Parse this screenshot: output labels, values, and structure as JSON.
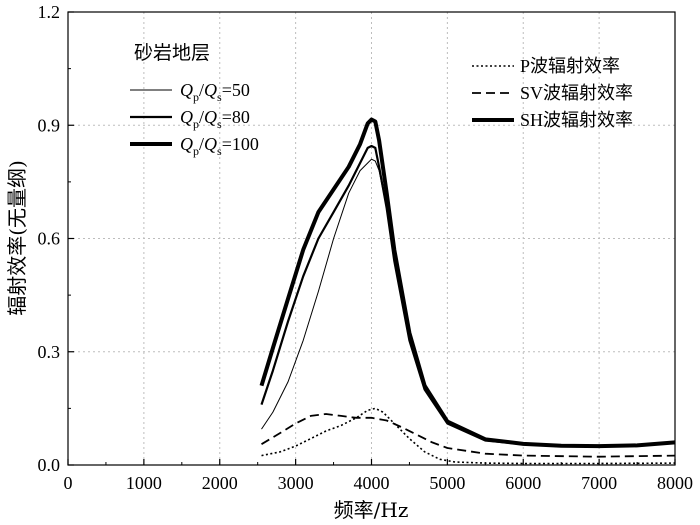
{
  "chart_data": {
    "type": "line",
    "xlabel": "频率/Hz",
    "ylabel": "辐射效率(无量纲)",
    "xlim": [
      0,
      8000
    ],
    "ylim": [
      0,
      1.2
    ],
    "xticks": [
      0,
      1000,
      2000,
      3000,
      4000,
      5000,
      6000,
      7000,
      8000
    ],
    "yticks": [
      0.0,
      0.3,
      0.6,
      0.9,
      1.2
    ],
    "xtick_labels": [
      "0",
      "1000",
      "2000",
      "3000",
      "4000",
      "5000",
      "6000",
      "7000",
      "8000"
    ],
    "ytick_labels": [
      "0.0",
      "0.3",
      "0.6",
      "0.9",
      "1.2"
    ],
    "grid": true,
    "legend_group_title": "砂岩地层",
    "legend_left": [
      {
        "pre": "Q",
        "sub1": "p",
        "mid": "/Q",
        "sub2": "s",
        "post": "=50",
        "width": 1
      },
      {
        "pre": "Q",
        "sub1": "p",
        "mid": "/Q",
        "sub2": "s",
        "post": "=80",
        "width": 2.2
      },
      {
        "pre": "Q",
        "sub1": "p",
        "mid": "/Q",
        "sub2": "s",
        "post": "=100",
        "width": 4
      }
    ],
    "legend_right": [
      {
        "label": "P波辐射效率",
        "style": "dotted"
      },
      {
        "label": "SV波辐射效率",
        "style": "dashed"
      },
      {
        "label": "SH波辐射效率",
        "style": "thick"
      }
    ],
    "series": [
      {
        "id": "sh-q50",
        "style": "solid",
        "width": 1,
        "x": [
          2550,
          2700,
          2900,
          3100,
          3300,
          3500,
          3700,
          3850,
          3950,
          4000,
          4050,
          4100,
          4200,
          4300,
          4500,
          4700,
          5000,
          5500,
          6000,
          6500,
          7000,
          7500,
          8000
        ],
        "y": [
          0.095,
          0.14,
          0.22,
          0.33,
          0.46,
          0.6,
          0.72,
          0.78,
          0.8,
          0.81,
          0.805,
          0.78,
          0.68,
          0.54,
          0.33,
          0.2,
          0.11,
          0.065,
          0.055,
          0.05,
          0.05,
          0.052,
          0.06
        ]
      },
      {
        "id": "sh-q80",
        "style": "solid",
        "width": 2.2,
        "x": [
          2550,
          2700,
          2900,
          3100,
          3300,
          3500,
          3700,
          3850,
          3950,
          4000,
          4050,
          4100,
          4200,
          4300,
          4500,
          4700,
          5000,
          5500,
          6000,
          6500,
          7000,
          7500,
          8000
        ],
        "y": [
          0.16,
          0.25,
          0.38,
          0.5,
          0.6,
          0.67,
          0.74,
          0.8,
          0.84,
          0.845,
          0.84,
          0.79,
          0.68,
          0.54,
          0.33,
          0.2,
          0.11,
          0.065,
          0.055,
          0.05,
          0.05,
          0.052,
          0.06
        ]
      },
      {
        "id": "sh-q100",
        "style": "thick",
        "width": 4,
        "x": [
          2550,
          2700,
          2900,
          3100,
          3300,
          3500,
          3700,
          3850,
          3950,
          4000,
          4050,
          4100,
          4200,
          4300,
          4500,
          4700,
          5000,
          5500,
          6000,
          6500,
          7000,
          7500,
          8000
        ],
        "y": [
          0.21,
          0.31,
          0.44,
          0.57,
          0.67,
          0.73,
          0.79,
          0.85,
          0.905,
          0.915,
          0.91,
          0.86,
          0.72,
          0.57,
          0.35,
          0.21,
          0.115,
          0.068,
          0.056,
          0.051,
          0.05,
          0.052,
          0.06
        ]
      },
      {
        "id": "p-wave",
        "style": "dotted",
        "width": 1.6,
        "x": [
          2550,
          2800,
          3000,
          3200,
          3400,
          3600,
          3800,
          3950,
          4050,
          4150,
          4300,
          4500,
          4700,
          4900,
          5100,
          5500,
          6000,
          7000,
          8000
        ],
        "y": [
          0.025,
          0.035,
          0.05,
          0.07,
          0.09,
          0.105,
          0.125,
          0.145,
          0.15,
          0.14,
          0.11,
          0.07,
          0.035,
          0.015,
          0.008,
          0.005,
          0.004,
          0.004,
          0.005
        ]
      },
      {
        "id": "sv-wave",
        "style": "dashed",
        "width": 1.8,
        "x": [
          2550,
          2800,
          3000,
          3200,
          3400,
          3600,
          3800,
          4000,
          4200,
          4400,
          4600,
          4800,
          5000,
          5500,
          6000,
          7000,
          8000
        ],
        "y": [
          0.055,
          0.085,
          0.11,
          0.13,
          0.135,
          0.13,
          0.125,
          0.125,
          0.118,
          0.1,
          0.08,
          0.06,
          0.045,
          0.03,
          0.025,
          0.022,
          0.025
        ]
      }
    ]
  }
}
